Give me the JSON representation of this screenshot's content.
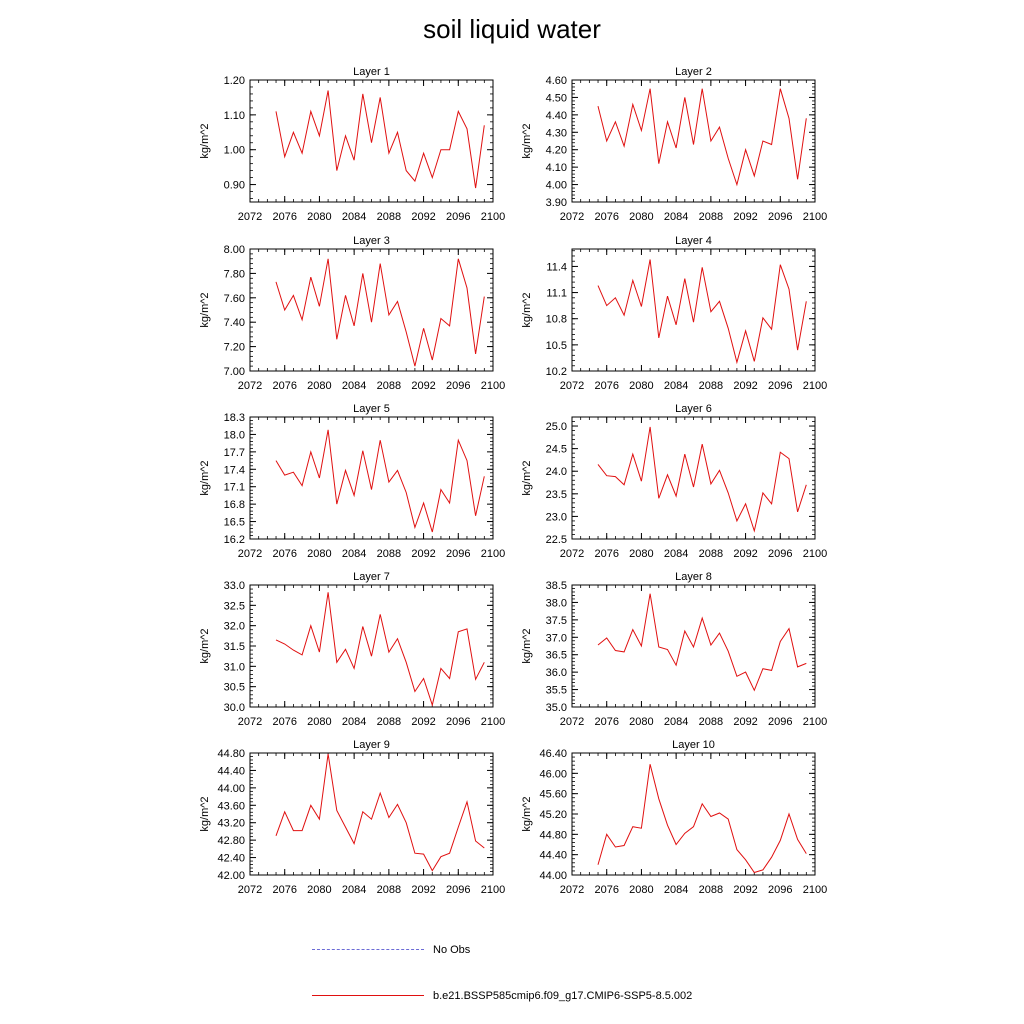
{
  "title": "soil liquid water",
  "legend": [
    {
      "label": "No Obs",
      "color": "#6b6bd6",
      "style": "dashed"
    },
    {
      "label": "b.e21.BSSP585cmip6.f09_g17.CMIP6-SSP5-8.5.002",
      "color": "#e01010",
      "style": "solid"
    }
  ],
  "chart_data": [
    {
      "type": "line",
      "title": "Layer 1",
      "ylabel": "kg/m^2",
      "xlim": [
        2072,
        2100
      ],
      "ylim": [
        0.85,
        1.2
      ],
      "xticks": [
        "2072",
        "2076",
        "2080",
        "2084",
        "2088",
        "2092",
        "2096",
        "2100"
      ],
      "yticks": [
        "0.90",
        "1.00",
        "1.10",
        "1.20"
      ],
      "x": [
        2075,
        2076,
        2077,
        2078,
        2079,
        2080,
        2081,
        2082,
        2083,
        2084,
        2085,
        2086,
        2087,
        2088,
        2089,
        2090,
        2091,
        2092,
        2093,
        2094,
        2095,
        2096,
        2097,
        2098,
        2099
      ],
      "series": [
        {
          "color": "#e01010",
          "values": [
            1.11,
            0.98,
            1.05,
            0.99,
            1.11,
            1.04,
            1.17,
            0.94,
            1.04,
            0.97,
            1.16,
            1.02,
            1.15,
            0.99,
            1.05,
            0.94,
            0.91,
            0.99,
            0.92,
            1.0,
            1.0,
            1.11,
            1.06,
            0.89,
            1.07
          ]
        }
      ]
    },
    {
      "type": "line",
      "title": "Layer 2",
      "ylabel": "kg/m^2",
      "xlim": [
        2072,
        2100
      ],
      "ylim": [
        3.9,
        4.6
      ],
      "xticks": [
        "2072",
        "2076",
        "2080",
        "2084",
        "2088",
        "2092",
        "2096",
        "2100"
      ],
      "yticks": [
        "3.90",
        "4.00",
        "4.10",
        "4.20",
        "4.30",
        "4.40",
        "4.50",
        "4.60"
      ],
      "x": [
        2075,
        2076,
        2077,
        2078,
        2079,
        2080,
        2081,
        2082,
        2083,
        2084,
        2085,
        2086,
        2087,
        2088,
        2089,
        2090,
        2091,
        2092,
        2093,
        2094,
        2095,
        2096,
        2097,
        2098,
        2099
      ],
      "series": [
        {
          "color": "#e01010",
          "values": [
            4.45,
            4.25,
            4.36,
            4.22,
            4.46,
            4.31,
            4.55,
            4.12,
            4.36,
            4.21,
            4.5,
            4.23,
            4.55,
            4.25,
            4.33,
            4.15,
            4.0,
            4.2,
            4.05,
            4.25,
            4.23,
            4.55,
            4.38,
            4.03,
            4.38
          ]
        }
      ]
    },
    {
      "type": "line",
      "title": "Layer 3",
      "ylabel": "kg/m^2",
      "xlim": [
        2072,
        2100
      ],
      "ylim": [
        7.0,
        8.0
      ],
      "xticks": [
        "2072",
        "2076",
        "2080",
        "2084",
        "2088",
        "2092",
        "2096",
        "2100"
      ],
      "yticks": [
        "7.00",
        "7.20",
        "7.40",
        "7.60",
        "7.80",
        "8.00"
      ],
      "x": [
        2075,
        2076,
        2077,
        2078,
        2079,
        2080,
        2081,
        2082,
        2083,
        2084,
        2085,
        2086,
        2087,
        2088,
        2089,
        2090,
        2091,
        2092,
        2093,
        2094,
        2095,
        2096,
        2097,
        2098,
        2099
      ],
      "series": [
        {
          "color": "#e01010",
          "values": [
            7.73,
            7.5,
            7.62,
            7.42,
            7.77,
            7.53,
            7.92,
            7.26,
            7.62,
            7.37,
            7.8,
            7.4,
            7.88,
            7.46,
            7.57,
            7.32,
            7.04,
            7.35,
            7.09,
            7.43,
            7.37,
            7.92,
            7.68,
            7.14,
            7.61
          ]
        }
      ]
    },
    {
      "type": "line",
      "title": "Layer 4",
      "ylabel": "kg/m^2",
      "xlim": [
        2072,
        2100
      ],
      "ylim": [
        10.2,
        11.6
      ],
      "xticks": [
        "2072",
        "2076",
        "2080",
        "2084",
        "2088",
        "2092",
        "2096",
        "2100"
      ],
      "yticks": [
        "10.2",
        "10.5",
        "10.8",
        "11.1",
        "11.4"
      ],
      "x": [
        2075,
        2076,
        2077,
        2078,
        2079,
        2080,
        2081,
        2082,
        2083,
        2084,
        2085,
        2086,
        2087,
        2088,
        2089,
        2090,
        2091,
        2092,
        2093,
        2094,
        2095,
        2096,
        2097,
        2098,
        2099
      ],
      "series": [
        {
          "color": "#e01010",
          "values": [
            11.18,
            10.95,
            11.04,
            10.84,
            11.24,
            10.94,
            11.48,
            10.58,
            11.06,
            10.73,
            11.26,
            10.76,
            11.39,
            10.88,
            11.0,
            10.69,
            10.3,
            10.66,
            10.31,
            10.81,
            10.68,
            11.42,
            11.14,
            10.44,
            11.0
          ]
        }
      ]
    },
    {
      "type": "line",
      "title": "Layer 5",
      "ylabel": "kg/m^2",
      "xlim": [
        2072,
        2100
      ],
      "ylim": [
        16.2,
        18.3
      ],
      "xticks": [
        "2072",
        "2076",
        "2080",
        "2084",
        "2088",
        "2092",
        "2096",
        "2100"
      ],
      "yticks": [
        "16.2",
        "16.5",
        "16.8",
        "17.1",
        "17.4",
        "17.7",
        "18.0",
        "18.3"
      ],
      "x": [
        2075,
        2076,
        2077,
        2078,
        2079,
        2080,
        2081,
        2082,
        2083,
        2084,
        2085,
        2086,
        2087,
        2088,
        2089,
        2090,
        2091,
        2092,
        2093,
        2094,
        2095,
        2096,
        2097,
        2098,
        2099
      ],
      "series": [
        {
          "color": "#e01010",
          "values": [
            17.55,
            17.3,
            17.35,
            17.12,
            17.7,
            17.25,
            18.08,
            16.8,
            17.38,
            16.95,
            17.72,
            17.05,
            17.9,
            17.18,
            17.38,
            17.0,
            16.4,
            16.82,
            16.32,
            17.05,
            16.82,
            17.9,
            17.55,
            16.6,
            17.28
          ]
        }
      ]
    },
    {
      "type": "line",
      "title": "Layer 6",
      "ylabel": "kg/m^2",
      "xlim": [
        2072,
        2100
      ],
      "ylim": [
        22.5,
        25.2
      ],
      "xticks": [
        "2072",
        "2076",
        "2080",
        "2084",
        "2088",
        "2092",
        "2096",
        "2100"
      ],
      "yticks": [
        "22.5",
        "23.0",
        "23.5",
        "24.0",
        "24.5",
        "25.0"
      ],
      "x": [
        2075,
        2076,
        2077,
        2078,
        2079,
        2080,
        2081,
        2082,
        2083,
        2084,
        2085,
        2086,
        2087,
        2088,
        2089,
        2090,
        2091,
        2092,
        2093,
        2094,
        2095,
        2096,
        2097,
        2098,
        2099
      ],
      "series": [
        {
          "color": "#e01010",
          "values": [
            24.15,
            23.9,
            23.88,
            23.7,
            24.38,
            23.78,
            24.98,
            23.4,
            23.92,
            23.45,
            24.38,
            23.65,
            24.6,
            23.72,
            24.02,
            23.52,
            22.9,
            23.28,
            22.68,
            23.52,
            23.28,
            24.42,
            24.28,
            23.1,
            23.7
          ]
        }
      ]
    },
    {
      "type": "line",
      "title": "Layer 7",
      "ylabel": "kg/m^2",
      "xlim": [
        2072,
        2100
      ],
      "ylim": [
        30.0,
        33.0
      ],
      "xticks": [
        "2072",
        "2076",
        "2080",
        "2084",
        "2088",
        "2092",
        "2096",
        "2100"
      ],
      "yticks": [
        "30.0",
        "30.5",
        "31.0",
        "31.5",
        "32.0",
        "32.5",
        "33.0"
      ],
      "x": [
        2075,
        2076,
        2077,
        2078,
        2079,
        2080,
        2081,
        2082,
        2083,
        2084,
        2085,
        2086,
        2087,
        2088,
        2089,
        2090,
        2091,
        2092,
        2093,
        2094,
        2095,
        2096,
        2097,
        2098,
        2099
      ],
      "series": [
        {
          "color": "#e01010",
          "values": [
            31.65,
            31.55,
            31.4,
            31.28,
            32.0,
            31.35,
            32.82,
            31.1,
            31.42,
            30.95,
            31.98,
            31.25,
            32.28,
            31.35,
            31.68,
            31.1,
            30.38,
            30.7,
            30.05,
            30.95,
            30.7,
            31.85,
            31.92,
            30.68,
            31.1
          ]
        }
      ]
    },
    {
      "type": "line",
      "title": "Layer 8",
      "ylabel": "kg/m^2",
      "xlim": [
        2072,
        2100
      ],
      "ylim": [
        35.0,
        38.5
      ],
      "xticks": [
        "2072",
        "2076",
        "2080",
        "2084",
        "2088",
        "2092",
        "2096",
        "2100"
      ],
      "yticks": [
        "35.0",
        "35.5",
        "36.0",
        "36.5",
        "37.0",
        "37.5",
        "38.0",
        "38.5"
      ],
      "x": [
        2075,
        2076,
        2077,
        2078,
        2079,
        2080,
        2081,
        2082,
        2083,
        2084,
        2085,
        2086,
        2087,
        2088,
        2089,
        2090,
        2091,
        2092,
        2093,
        2094,
        2095,
        2096,
        2097,
        2098,
        2099
      ],
      "series": [
        {
          "color": "#e01010",
          "values": [
            36.78,
            36.98,
            36.62,
            36.58,
            37.22,
            36.75,
            38.25,
            36.72,
            36.65,
            36.2,
            37.18,
            36.72,
            37.55,
            36.78,
            37.12,
            36.6,
            35.88,
            36.0,
            35.48,
            36.1,
            36.05,
            36.88,
            37.25,
            36.15,
            36.25
          ]
        }
      ]
    },
    {
      "type": "line",
      "title": "Layer 9",
      "ylabel": "kg/m^2",
      "xlim": [
        2072,
        2100
      ],
      "ylim": [
        42.0,
        44.8
      ],
      "xticks": [
        "2072",
        "2076",
        "2080",
        "2084",
        "2088",
        "2092",
        "2096",
        "2100"
      ],
      "yticks": [
        "42.00",
        "42.40",
        "42.80",
        "43.20",
        "43.60",
        "44.00",
        "44.40",
        "44.80"
      ],
      "x": [
        2075,
        2076,
        2077,
        2078,
        2079,
        2080,
        2081,
        2082,
        2083,
        2084,
        2085,
        2086,
        2087,
        2088,
        2089,
        2090,
        2091,
        2092,
        2093,
        2094,
        2095,
        2096,
        2097,
        2098,
        2099
      ],
      "series": [
        {
          "color": "#e01010",
          "values": [
            42.9,
            43.45,
            43.02,
            43.02,
            43.6,
            43.28,
            44.78,
            43.48,
            43.1,
            42.72,
            43.45,
            43.28,
            43.88,
            43.32,
            43.62,
            43.2,
            42.5,
            42.48,
            42.1,
            42.42,
            42.5,
            43.1,
            43.68,
            42.78,
            42.62
          ]
        }
      ]
    },
    {
      "type": "line",
      "title": "Layer 10",
      "ylabel": "kg/m^2",
      "xlim": [
        2072,
        2100
      ],
      "ylim": [
        44.0,
        46.4
      ],
      "xticks": [
        "2072",
        "2076",
        "2080",
        "2084",
        "2088",
        "2092",
        "2096",
        "2100"
      ],
      "yticks": [
        "44.00",
        "44.40",
        "44.80",
        "45.20",
        "45.60",
        "46.00",
        "46.40"
      ],
      "x": [
        2075,
        2076,
        2077,
        2078,
        2079,
        2080,
        2081,
        2082,
        2083,
        2084,
        2085,
        2086,
        2087,
        2088,
        2089,
        2090,
        2091,
        2092,
        2093,
        2094,
        2095,
        2096,
        2097,
        2098,
        2099
      ],
      "series": [
        {
          "color": "#e01010",
          "values": [
            44.2,
            44.8,
            44.55,
            44.58,
            44.95,
            44.92,
            46.18,
            45.5,
            44.98,
            44.6,
            44.82,
            44.95,
            45.4,
            45.15,
            45.22,
            45.1,
            44.5,
            44.3,
            44.05,
            44.1,
            44.35,
            44.68,
            45.2,
            44.7,
            44.42
          ]
        }
      ]
    }
  ]
}
